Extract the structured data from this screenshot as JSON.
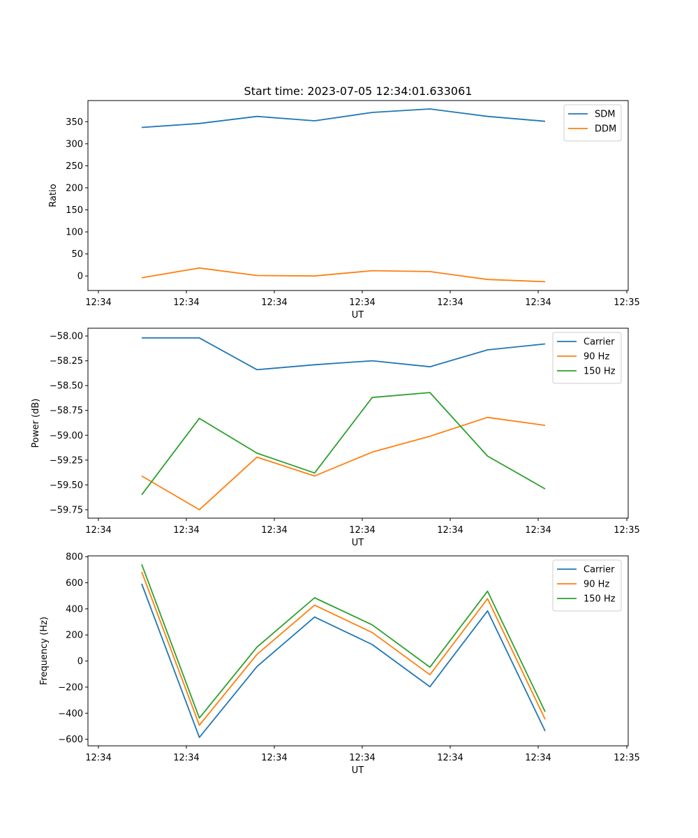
{
  "figure_title": "Start time: 2023-07-05 12:34:01.633061",
  "colors": {
    "c0": "#1f77b4",
    "c1": "#ff7f0e",
    "c2": "#2ca02c"
  },
  "chart_data": [
    {
      "type": "line",
      "ylabel": "Ratio",
      "xlabel": "UT",
      "x_tick_labels": [
        "12:34",
        "12:34",
        "12:34",
        "12:34",
        "12:34",
        "12:34",
        "12:35"
      ],
      "y_ticks": [
        0,
        50,
        100,
        150,
        200,
        250,
        300,
        350
      ],
      "y_tick_labels": [
        "0",
        "50",
        "100",
        "150",
        "200",
        "250",
        "300",
        "350"
      ],
      "ylim": [
        -33,
        398
      ],
      "legend_position": "top-right",
      "series": [
        {
          "name": "SDM",
          "color": "#1f77b4",
          "values": [
            337,
            346,
            362,
            352,
            371,
            379,
            362,
            351
          ]
        },
        {
          "name": "DDM",
          "color": "#ff7f0e",
          "values": [
            -4,
            18,
            1,
            0,
            12,
            10,
            -8,
            -13
          ]
        }
      ]
    },
    {
      "type": "line",
      "ylabel": "Power (dB)",
      "xlabel": "UT",
      "x_tick_labels": [
        "12:34",
        "12:34",
        "12:34",
        "12:34",
        "12:34",
        "12:34",
        "12:35"
      ],
      "y_ticks": [
        -58.0,
        -58.25,
        -58.5,
        -58.75,
        -59.0,
        -59.25,
        -59.5,
        -59.75
      ],
      "y_tick_labels": [
        "−58.00",
        "−58.25",
        "−58.50",
        "−58.75",
        "−59.00",
        "−59.25",
        "−59.50",
        "−59.75"
      ],
      "ylim": [
        -59.835,
        -57.922
      ],
      "legend_position": "top-right",
      "series": [
        {
          "name": "Carrier",
          "color": "#1f77b4",
          "values": [
            -58.02,
            -58.02,
            -58.34,
            -58.29,
            -58.25,
            -58.31,
            -58.14,
            -58.08
          ]
        },
        {
          "name": "90 Hz",
          "color": "#ff7f0e",
          "values": [
            -59.41,
            -59.75,
            -59.22,
            -59.41,
            -59.17,
            -59.01,
            -58.82,
            -58.9
          ]
        },
        {
          "name": "150 Hz",
          "color": "#2ca02c",
          "values": [
            -59.6,
            -58.83,
            -59.18,
            -59.38,
            -58.62,
            -58.57,
            -59.21,
            -59.54
          ]
        }
      ]
    },
    {
      "type": "line",
      "ylabel": "Frequency (Hz)",
      "xlabel": "UT",
      "x_tick_labels": [
        "12:34",
        "12:34",
        "12:34",
        "12:34",
        "12:34",
        "12:34",
        "12:35"
      ],
      "y_ticks": [
        800,
        600,
        400,
        200,
        0,
        -200,
        -400,
        -600
      ],
      "y_tick_labels": [
        "800",
        "600",
        "400",
        "200",
        "0",
        "−200",
        "−400",
        "−600"
      ],
      "ylim": [
        -650,
        806
      ],
      "legend_position": "top-right",
      "series": [
        {
          "name": "Carrier",
          "color": "#1f77b4",
          "values": [
            592,
            -585,
            -42,
            337,
            126,
            -197,
            384,
            -537
          ]
        },
        {
          "name": "90 Hz",
          "color": "#ff7f0e",
          "values": [
            684,
            -492,
            51,
            428,
            218,
            -105,
            478,
            -447
          ]
        },
        {
          "name": "150 Hz",
          "color": "#2ca02c",
          "values": [
            741,
            -437,
            107,
            485,
            277,
            -47,
            535,
            -389
          ]
        }
      ]
    }
  ]
}
